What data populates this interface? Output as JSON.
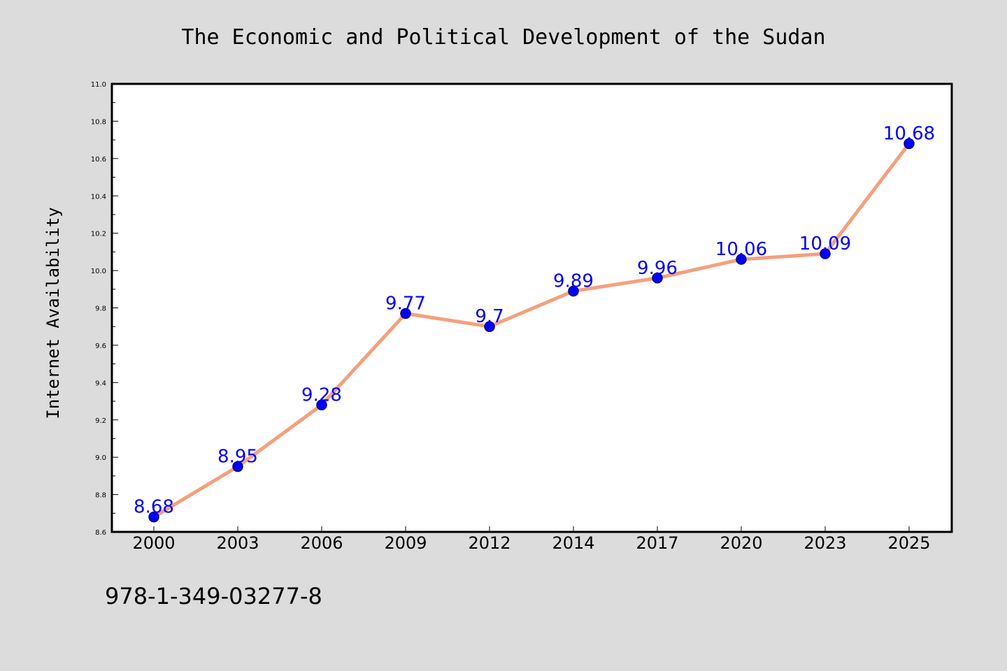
{
  "chart_data": {
    "type": "line",
    "title": "The Economic and Political Development of the Sudan",
    "xlabel": "",
    "ylabel": "Internet Availability",
    "categories": [
      "2000",
      "2003",
      "2006",
      "2009",
      "2012",
      "2014",
      "2017",
      "2020",
      "2023",
      "2025"
    ],
    "series": [
      {
        "values": [
          8.68,
          8.95,
          9.28,
          9.77,
          9.7,
          9.89,
          9.96,
          10.06,
          10.09,
          10.68
        ]
      }
    ],
    "data_labels": [
      "8.68",
      "8.95",
      "9.28",
      "9.77",
      "9.7",
      "9.89",
      "9.96",
      "10.06",
      "10.09",
      "10.68"
    ],
    "ylim": [
      8.6,
      11.0
    ],
    "yticks": [
      "8.6",
      "8.8",
      "9.0",
      "9.2",
      "9.4",
      "9.6",
      "9.8",
      "10.0",
      "10.2",
      "10.4",
      "10.6",
      "10.8",
      "11.0"
    ],
    "grid": false,
    "legend": "none",
    "colors": {
      "line": "#f4a07e",
      "marker": "#0000ff",
      "marker_edge": "#000080",
      "label": "#0000ff",
      "background": "#dcdcdc",
      "plot_background": "#ffffff"
    }
  },
  "footer": {
    "isbn": "978-1-349-03277-8"
  }
}
